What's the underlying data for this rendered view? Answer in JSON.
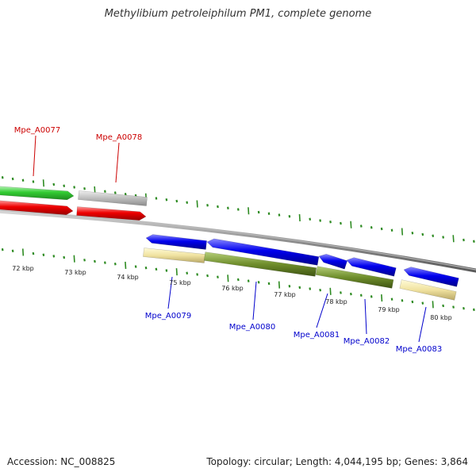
{
  "title": "Methylibium petroleiphilum PM1, complete genome",
  "footer": {
    "accession": "Accession: NC_008825",
    "summary": "Topology: circular; Length: 4,044,195 bp; Genes: 3,864"
  },
  "colors": {
    "forward_label": "#cc0000",
    "reverse_label": "#0000cc",
    "tick": "#2e8b22",
    "backbone": "#808080"
  },
  "kbp_labels": [
    "72 kbp",
    "73 kbp",
    "74 kbp",
    "75 kbp",
    "76 kbp",
    "77 kbp",
    "78 kbp",
    "79 kbp",
    "80 kbp"
  ],
  "genes": [
    {
      "name": "Mpe_A0077",
      "strand": "forward",
      "color_top": "green",
      "color_bottom": "red"
    },
    {
      "name": "Mpe_A0078",
      "strand": "forward",
      "color_top": "gray",
      "color_bottom": "red"
    },
    {
      "name": "Mpe_A0079",
      "strand": "reverse",
      "color_top": "blue",
      "color_bottom": "khaki"
    },
    {
      "name": "Mpe_A0080",
      "strand": "reverse",
      "color_top": "blue",
      "color_bottom": "olive"
    },
    {
      "name": "Mpe_A0081",
      "strand": "reverse",
      "color_top": "blue",
      "color_bottom": "olive"
    },
    {
      "name": "Mpe_A0082",
      "strand": "reverse",
      "color_top": "blue",
      "color_bottom": "olive"
    },
    {
      "name": "Mpe_A0083",
      "strand": "reverse",
      "color_top": "blue",
      "color_bottom": "khaki"
    }
  ]
}
